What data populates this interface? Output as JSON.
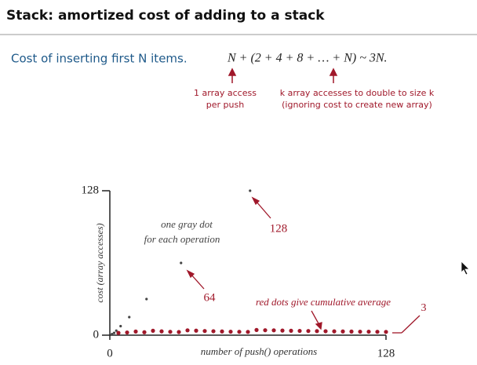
{
  "slide": {
    "title": "Stack:  amortized cost of adding to a stack",
    "subtitle": "Cost of inserting first N items.",
    "formula": "N + (2 + 4 + 8 + … + N)  ~  3N.",
    "note_left": [
      "1 array access",
      "per push"
    ],
    "note_right": [
      "k array accesses to double to size k",
      "(ignoring cost to create new array)"
    ]
  },
  "chart_data": {
    "type": "scatter",
    "xlabel": "number of push() operations",
    "ylabel": "cost (array accesses)",
    "xlim": [
      0,
      128
    ],
    "ylim": [
      0,
      128
    ],
    "xticks": [
      0,
      128
    ],
    "yticks": [
      0,
      128
    ],
    "series": [
      {
        "name": "gray",
        "color": "#444444",
        "x": [
          1,
          2,
          3,
          5,
          9,
          17,
          33,
          65
        ],
        "values": [
          1,
          2,
          4,
          8,
          16,
          32,
          64,
          128
        ]
      },
      {
        "name": "red",
        "color": "#a0182a",
        "x": [
          4,
          8,
          12,
          16,
          20,
          24,
          28,
          32,
          36,
          40,
          44,
          48,
          52,
          56,
          60,
          64,
          68,
          72,
          76,
          80,
          84,
          88,
          92,
          96,
          100,
          104,
          108,
          112,
          116,
          120,
          124,
          128
        ],
        "values": [
          2.0,
          2.4,
          3.2,
          2.6,
          3.9,
          3.4,
          3.0,
          2.8,
          4.3,
          4.0,
          3.7,
          3.5,
          3.3,
          3.1,
          3.0,
          2.9,
          4.6,
          4.4,
          4.3,
          4.1,
          3.9,
          3.8,
          3.7,
          3.6,
          3.5,
          3.4,
          3.3,
          3.2,
          3.1,
          3.1,
          3.0,
          2.9
        ]
      }
    ],
    "annotations": [
      [
        "one gray dot",
        "for each operation"
      ],
      "128",
      "64",
      "red dots give cumulative average",
      "3"
    ]
  }
}
